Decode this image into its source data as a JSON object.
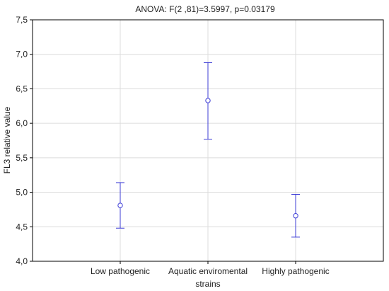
{
  "chart_data": {
    "type": "scatter",
    "title": "ANOVA: F(2 ,81)=3.5997, p=0.03179",
    "xlabel": "strains",
    "ylabel": "FL3 relative value",
    "categories": [
      "Low pathogenic",
      "Aquatic enviromental",
      "Highly pathogenic"
    ],
    "ylim": [
      4.0,
      7.5
    ],
    "yticks": [
      4.0,
      4.5,
      5.0,
      5.5,
      6.0,
      6.5,
      7.0,
      7.5
    ],
    "ytick_labels": [
      "4,0",
      "4,5",
      "5,0",
      "5,5",
      "6,0",
      "6,5",
      "7,0",
      "7,5"
    ],
    "grid": true,
    "series": [
      {
        "mean": [
          4.81,
          6.33,
          4.66
        ],
        "lower": [
          4.48,
          5.77,
          4.35
        ],
        "upper": [
          5.14,
          6.88,
          4.97
        ]
      }
    ],
    "colors": {
      "marker": "#3d3dd6",
      "grid": "#dcdcdc",
      "axis": "#000000"
    }
  }
}
